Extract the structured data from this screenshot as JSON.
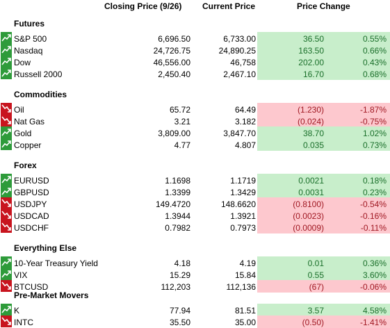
{
  "headers": {
    "closing": "Closing Price (9/26)",
    "current": "Current Price",
    "change": "Price Change"
  },
  "colors": {
    "up_bg": "#c8eecb",
    "down_bg": "#fdc8ce",
    "up_text": "#1a6f2a",
    "down_text": "#a01822",
    "up_icon": "#2e9b3a",
    "down_icon": "#c8141e"
  },
  "sections": [
    {
      "title": "Futures",
      "rows": [
        {
          "name": "S&P 500",
          "close": "6,696.50",
          "current": "6,733.00",
          "change": "36.50",
          "pct": "0.55%",
          "dir": "up",
          "icon": "trend-up-icon"
        },
        {
          "name": "Nasdaq",
          "close": "24,726.75",
          "current": "24,890.25",
          "change": "163.50",
          "pct": "0.66%",
          "dir": "up",
          "icon": "trend-up-icon"
        },
        {
          "name": "Dow",
          "close": "46,556.00",
          "current": "46,758",
          "change": "202.00",
          "pct": "0.43%",
          "dir": "up",
          "icon": "trend-up-icon"
        },
        {
          "name": "Russell 2000",
          "close": "2,450.40",
          "current": "2,467.10",
          "change": "16.70",
          "pct": "0.68%",
          "dir": "up",
          "icon": "trend-up-icon"
        }
      ]
    },
    {
      "title": "Commodities",
      "rows": [
        {
          "name": "Oil",
          "close": "65.72",
          "current": "64.49",
          "change": "(1.230)",
          "pct": "-1.87%",
          "dir": "down",
          "icon": "trend-down-icon"
        },
        {
          "name": "Nat Gas",
          "close": "3.21",
          "current": "3.182",
          "change": "(0.024)",
          "pct": "-0.75%",
          "dir": "down",
          "icon": "trend-down-icon"
        },
        {
          "name": "Gold",
          "close": "3,809.00",
          "current": "3,847.70",
          "change": "38.70",
          "pct": "1.02%",
          "dir": "up",
          "icon": "trend-up-icon"
        },
        {
          "name": "Copper",
          "close": "4.77",
          "current": "4.807",
          "change": "0.035",
          "pct": "0.73%",
          "dir": "up",
          "icon": "trend-up-icon"
        }
      ]
    },
    {
      "title": "Forex",
      "rows": [
        {
          "name": "EURUSD",
          "close": "1.1698",
          "current": "1.1719",
          "change": "0.0021",
          "pct": "0.18%",
          "dir": "up",
          "icon": "trend-up-icon"
        },
        {
          "name": "GBPUSD",
          "close": "1.3399",
          "current": "1.3429",
          "change": "0.0031",
          "pct": "0.23%",
          "dir": "up",
          "icon": "trend-up-icon"
        },
        {
          "name": "USDJPY",
          "close": "149.4720",
          "current": "148.6620",
          "change": "(0.8100)",
          "pct": "-0.54%",
          "dir": "down",
          "icon": "trend-down-icon"
        },
        {
          "name": "USDCAD",
          "close": "1.3944",
          "current": "1.3921",
          "change": "(0.0023)",
          "pct": "-0.16%",
          "dir": "down",
          "icon": "trend-down-icon"
        },
        {
          "name": "USDCHF",
          "close": "0.7982",
          "current": "0.7973",
          "change": "(0.0009)",
          "pct": "-0.11%",
          "dir": "down",
          "icon": "trend-down-icon"
        }
      ]
    },
    {
      "title": "Everything Else",
      "rows": [
        {
          "name": "10-Year Treasury Yield",
          "close": "4.18",
          "current": "4.19",
          "change": "0.01",
          "pct": "0.36%",
          "dir": "up",
          "icon": "trend-up-icon"
        },
        {
          "name": "VIX",
          "close": "15.29",
          "current": "15.84",
          "change": "0.55",
          "pct": "3.60%",
          "dir": "up",
          "icon": "trend-up-icon"
        },
        {
          "name": "BTCUSD",
          "close": "112,203",
          "current": "112,136",
          "change": "(67)",
          "pct": "-0.06%",
          "dir": "down",
          "icon": "trend-down-icon"
        }
      ]
    },
    {
      "title": "Pre-Market Movers",
      "rows": [
        {
          "name": "K",
          "close": "77.94",
          "current": "81.51",
          "change": "3.57",
          "pct": "4.58%",
          "dir": "up",
          "icon": "trend-up-icon"
        },
        {
          "name": "INTC",
          "close": "35.50",
          "current": "35.00",
          "change": "(0.50)",
          "pct": "-1.41%",
          "dir": "down",
          "icon": "trend-down-icon"
        }
      ]
    }
  ]
}
